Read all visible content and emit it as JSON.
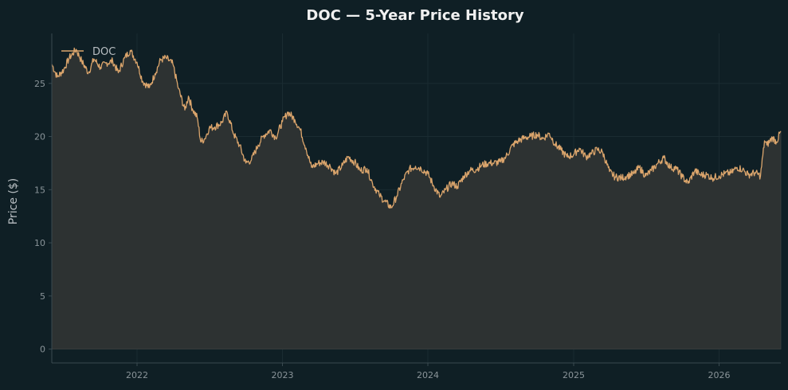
{
  "chart_data": {
    "type": "area",
    "title": "DOC — 5-Year Price History",
    "xlabel": "",
    "ylabel": "Price ($)",
    "x_range": [
      "2021-06-01",
      "2026-06-05"
    ],
    "ylim": [
      -1.3,
      29.7
    ],
    "x_ticks": [
      {
        "label": "2022",
        "date": "2022-01-01"
      },
      {
        "label": "2023",
        "date": "2023-01-01"
      },
      {
        "label": "2024",
        "date": "2024-01-01"
      },
      {
        "label": "2025",
        "date": "2025-01-01"
      },
      {
        "label": "2026",
        "date": "2026-01-01"
      }
    ],
    "y_ticks": [
      0,
      5,
      10,
      15,
      20,
      25
    ],
    "grid": true,
    "legend": {
      "position": "top-left",
      "entries": [
        "DOC"
      ]
    },
    "colors": {
      "background": "#0f1f25",
      "line": "#dba56c",
      "fill": "#2d3232",
      "grid": "#1a2b31",
      "axis": "#3a4a50",
      "tick_text": "#8a9499",
      "title_text": "#f0f0f0",
      "label_text": "#b8bec2"
    },
    "series": [
      {
        "name": "DOC",
        "x": [
          "2021-06-01",
          "2021-06-15",
          "2021-07-01",
          "2021-07-15",
          "2021-08-01",
          "2021-08-15",
          "2021-09-01",
          "2021-09-15",
          "2021-10-01",
          "2021-10-15",
          "2021-11-01",
          "2021-11-15",
          "2021-12-01",
          "2021-12-15",
          "2022-01-01",
          "2022-01-15",
          "2022-02-01",
          "2022-02-15",
          "2022-03-01",
          "2022-03-15",
          "2022-04-01",
          "2022-04-15",
          "2022-05-01",
          "2022-05-10",
          "2022-05-20",
          "2022-06-01",
          "2022-06-10",
          "2022-06-20",
          "2022-07-01",
          "2022-07-15",
          "2022-08-01",
          "2022-08-15",
          "2022-09-01",
          "2022-09-15",
          "2022-10-01",
          "2022-10-15",
          "2022-11-01",
          "2022-11-15",
          "2022-12-01",
          "2022-12-15",
          "2023-01-01",
          "2023-01-15",
          "2023-02-01",
          "2023-02-15",
          "2023-03-01",
          "2023-03-15",
          "2023-04-01",
          "2023-04-15",
          "2023-05-01",
          "2023-05-15",
          "2023-06-01",
          "2023-06-15",
          "2023-07-01",
          "2023-07-15",
          "2023-08-01",
          "2023-08-15",
          "2023-09-01",
          "2023-09-15",
          "2023-10-01",
          "2023-10-15",
          "2023-11-01",
          "2023-11-15",
          "2023-12-01",
          "2023-12-15",
          "2024-01-01",
          "2024-01-15",
          "2024-02-01",
          "2024-02-15",
          "2024-03-01",
          "2024-03-15",
          "2024-04-01",
          "2024-04-15",
          "2024-05-01",
          "2024-05-15",
          "2024-06-01",
          "2024-06-15",
          "2024-07-01",
          "2024-07-15",
          "2024-08-01",
          "2024-08-15",
          "2024-09-01",
          "2024-09-15",
          "2024-10-01",
          "2024-10-15",
          "2024-11-01",
          "2024-11-15",
          "2024-12-01",
          "2024-12-15",
          "2025-01-01",
          "2025-01-15",
          "2025-02-01",
          "2025-02-15",
          "2025-03-01",
          "2025-03-15",
          "2025-04-01",
          "2025-04-15",
          "2025-05-01",
          "2025-05-15",
          "2025-06-01",
          "2025-06-15",
          "2025-07-01",
          "2025-07-15",
          "2025-08-01",
          "2025-08-15",
          "2025-09-01",
          "2025-09-15",
          "2025-10-01",
          "2025-10-15",
          "2025-11-01",
          "2025-11-15",
          "2025-12-01",
          "2025-12-15",
          "2026-01-01",
          "2026-01-15",
          "2026-02-01",
          "2026-02-15",
          "2026-03-01",
          "2026-03-15",
          "2026-04-01",
          "2026-04-15",
          "2026-04-25",
          "2026-05-01",
          "2026-05-15",
          "2026-05-25",
          "2026-06-05"
        ],
        "values": [
          26.8,
          25.6,
          26.3,
          27.4,
          28.2,
          27.1,
          26.0,
          27.3,
          26.5,
          26.9,
          27.1,
          26.0,
          27.4,
          28.1,
          27.0,
          25.2,
          24.6,
          25.9,
          27.2,
          27.4,
          26.8,
          24.5,
          22.5,
          23.8,
          22.6,
          21.8,
          19.5,
          19.8,
          20.8,
          20.9,
          21.3,
          22.3,
          20.2,
          19.2,
          17.5,
          17.8,
          19.2,
          20.1,
          20.6,
          19.9,
          21.4,
          22.3,
          21.6,
          20.6,
          18.9,
          17.1,
          17.5,
          17.6,
          17.2,
          16.5,
          17.3,
          18.1,
          17.6,
          16.8,
          17.0,
          15.6,
          14.5,
          13.9,
          13.3,
          14.4,
          16.0,
          16.9,
          17.2,
          17.0,
          16.5,
          15.4,
          14.3,
          15.0,
          15.6,
          15.3,
          16.3,
          16.8,
          16.9,
          17.3,
          17.5,
          17.5,
          17.6,
          18.1,
          19.2,
          19.6,
          19.9,
          20.0,
          20.2,
          19.8,
          20.3,
          19.3,
          18.7,
          18.1,
          18.3,
          18.9,
          18.1,
          18.4,
          18.8,
          18.5,
          16.7,
          16.2,
          16.1,
          16.3,
          16.5,
          17.1,
          16.3,
          16.8,
          17.5,
          18.0,
          17.1,
          17.0,
          16.2,
          15.6,
          16.8,
          16.4,
          16.4,
          16.1,
          16.3,
          16.5,
          16.6,
          17.1,
          16.9,
          16.4,
          16.6,
          16.3,
          19.6,
          19.2,
          19.9,
          19.5,
          20.5
        ]
      }
    ]
  }
}
